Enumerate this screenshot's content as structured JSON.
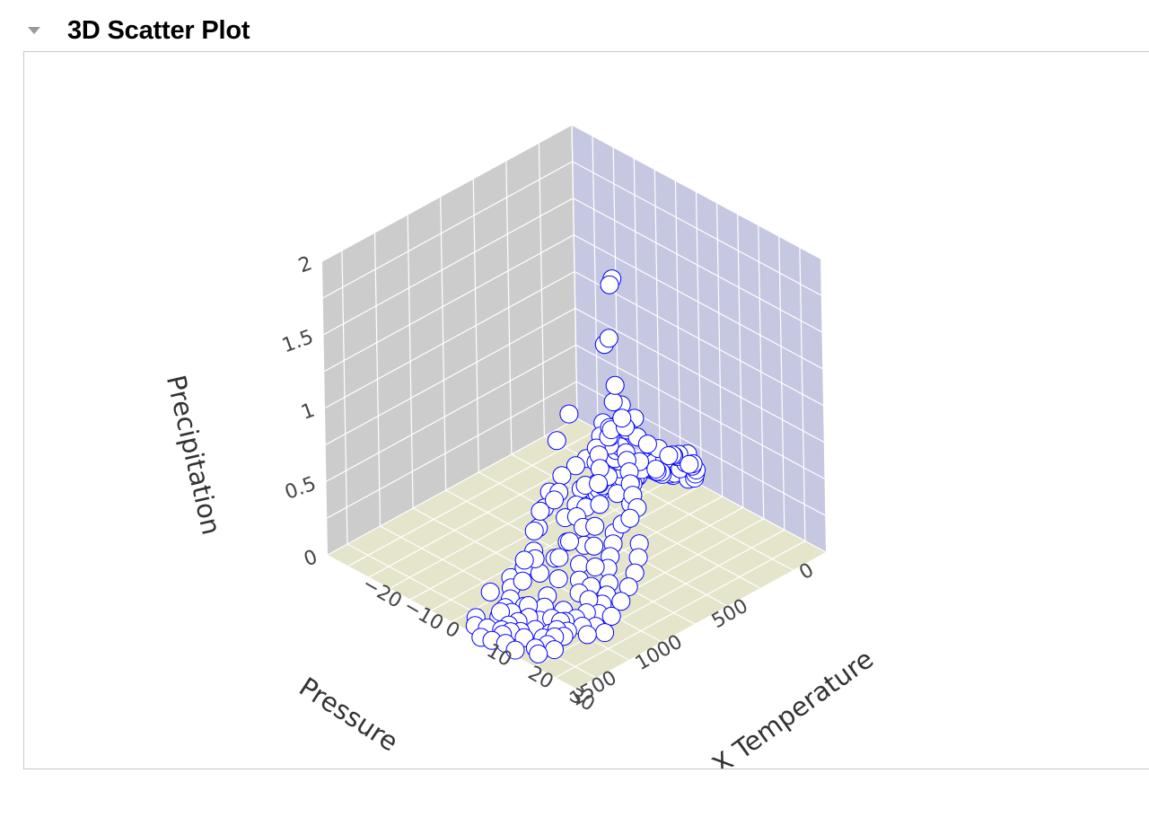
{
  "header": {
    "title": "3D Scatter Plot",
    "toggle_icon": "triangle-down-icon"
  },
  "chart_data": {
    "type": "scatter",
    "dimensions": 3,
    "marker": {
      "symbol": "open-circle",
      "color": "#0000ff",
      "fill": "#ffffff"
    },
    "colors": {
      "xz_wall": "#cccccc",
      "yz_wall": "#c6c7e1",
      "floor": "#e5e5cb",
      "grid": "#ffffff"
    },
    "axes": {
      "x": {
        "title": "Pressure",
        "ticks": [
          "0",
          "500",
          "1000",
          "1500"
        ],
        "range": [
          0,
          1900
        ]
      },
      "y": {
        "title": "X Temperature",
        "ticks": [
          "−20",
          "−10",
          "0",
          "10",
          "20",
          "30"
        ],
        "range": [
          -25,
          35
        ]
      },
      "z": {
        "title": "Precipitation",
        "ticks": [
          "0",
          "0.5",
          "1",
          "1.5",
          "2"
        ],
        "range": [
          0,
          2
        ]
      }
    },
    "points_note": "",
    "points": [
      [
        950,
        14.8,
        2.02
      ],
      [
        960,
        14.5,
        1.98
      ],
      [
        950,
        13.8,
        1.6
      ],
      [
        960,
        13.0,
        1.55
      ],
      [
        870,
        12.5,
        1.22
      ],
      [
        870,
        12.0,
        1.1
      ],
      [
        810,
        12.0,
        1.05
      ],
      [
        650,
        10.0,
        0.85
      ],
      [
        900,
        15.0,
        1.05
      ],
      [
        870,
        14.8,
        0.97
      ],
      [
        920,
        13.0,
        0.95
      ],
      [
        1020,
        6.0,
        1.0
      ],
      [
        1100,
        5.5,
        0.85
      ],
      [
        1200,
        9.0,
        0.6
      ],
      [
        1220,
        8.5,
        0.55
      ],
      [
        1360,
        8.0,
        0.4
      ],
      [
        1250,
        6.0,
        0.45
      ],
      [
        1500,
        10.0,
        0.3
      ],
      [
        1700,
        8.0,
        0.15
      ],
      [
        1750,
        12.0,
        0.1
      ],
      [
        1800,
        16.0,
        0.05
      ],
      [
        1600,
        14.0,
        0.1
      ],
      [
        1550,
        18.0,
        0.05
      ],
      [
        1400,
        15.0,
        0.2
      ],
      [
        1300,
        12.0,
        0.25
      ],
      [
        1450,
        11.0,
        0.3
      ],
      [
        1250,
        13.0,
        0.35
      ],
      [
        1100,
        10.0,
        0.4
      ],
      [
        1000,
        9.0,
        0.55
      ],
      [
        900,
        8.5,
        0.65
      ],
      [
        850,
        7.0,
        0.7
      ],
      [
        800,
        6.5,
        0.75
      ],
      [
        750,
        5.5,
        0.8
      ],
      [
        700,
        4.0,
        0.6
      ],
      [
        650,
        5.0,
        0.5
      ],
      [
        600,
        4.5,
        0.45
      ],
      [
        550,
        3.0,
        0.35
      ],
      [
        500,
        2.0,
        0.25
      ],
      [
        450,
        1.0,
        0.2
      ],
      [
        400,
        0.0,
        0.15
      ],
      [
        350,
        -1.0,
        0.1
      ],
      [
        300,
        -2.0,
        0.05
      ],
      [
        250,
        -3.0,
        0.05
      ],
      [
        200,
        -4.0,
        0.02
      ],
      [
        150,
        -5.0,
        0.01
      ],
      [
        100,
        -6.0,
        0.0
      ],
      [
        50,
        -7.0,
        0.0
      ],
      [
        120,
        -3.0,
        0.05
      ],
      [
        180,
        -1.0,
        0.1
      ],
      [
        220,
        1.0,
        0.15
      ],
      [
        280,
        3.0,
        0.2
      ],
      [
        320,
        5.0,
        0.25
      ],
      [
        380,
        7.0,
        0.3
      ],
      [
        420,
        9.0,
        0.35
      ],
      [
        480,
        11.0,
        0.4
      ],
      [
        520,
        12.0,
        0.45
      ],
      [
        580,
        13.0,
        0.5
      ],
      [
        620,
        14.0,
        0.55
      ],
      [
        680,
        12.0,
        0.6
      ],
      [
        720,
        10.0,
        0.65
      ],
      [
        780,
        8.0,
        0.7
      ],
      [
        820,
        9.5,
        0.8
      ],
      [
        880,
        11.0,
        0.85
      ],
      [
        940,
        10.5,
        0.75
      ],
      [
        980,
        12.0,
        0.7
      ],
      [
        1040,
        13.5,
        0.65
      ],
      [
        1080,
        15.0,
        0.55
      ],
      [
        1150,
        16.0,
        0.45
      ],
      [
        1190,
        17.0,
        0.35
      ],
      [
        1230,
        18.5,
        0.25
      ],
      [
        1280,
        19.0,
        0.15
      ],
      [
        1330,
        20.0,
        0.1
      ],
      [
        1380,
        21.0,
        0.05
      ],
      [
        1430,
        20.0,
        0.02
      ],
      [
        1480,
        19.0,
        0.01
      ],
      [
        1520,
        17.0,
        0.0
      ],
      [
        1580,
        16.0,
        0.02
      ],
      [
        1630,
        15.0,
        0.05
      ],
      [
        1680,
        14.0,
        0.03
      ],
      [
        1720,
        13.0,
        0.01
      ],
      [
        1660,
        17.5,
        0.02
      ],
      [
        1610,
        19.5,
        0.0
      ],
      [
        1540,
        21.5,
        0.01
      ],
      [
        1460,
        22.5,
        0.02
      ],
      [
        1390,
        23.5,
        0.0
      ],
      [
        1320,
        22.0,
        0.03
      ],
      [
        1260,
        21.0,
        0.05
      ],
      [
        1210,
        20.5,
        0.08
      ],
      [
        1160,
        19.5,
        0.12
      ],
      [
        1120,
        18.0,
        0.18
      ],
      [
        1070,
        17.0,
        0.22
      ],
      [
        1030,
        16.5,
        0.28
      ],
      [
        990,
        15.5,
        0.32
      ],
      [
        960,
        16.5,
        0.38
      ],
      [
        930,
        17.5,
        0.42
      ],
      [
        890,
        18.0,
        0.48
      ],
      [
        860,
        16.0,
        0.52
      ],
      [
        830,
        14.5,
        0.56
      ],
      [
        790,
        13.0,
        0.6
      ],
      [
        760,
        11.5,
        0.64
      ],
      [
        730,
        9.0,
        0.68
      ],
      [
        700,
        7.5,
        0.72
      ],
      [
        670,
        6.0,
        0.58
      ],
      [
        640,
        3.5,
        0.48
      ],
      [
        610,
        2.0,
        0.38
      ],
      [
        580,
        0.5,
        0.28
      ],
      [
        560,
        -1.0,
        0.18
      ],
      [
        540,
        -2.5,
        0.12
      ],
      [
        510,
        -4.0,
        0.06
      ],
      [
        490,
        -5.5,
        0.04
      ],
      [
        470,
        -6.5,
        0.02
      ],
      [
        440,
        -5.0,
        0.03
      ],
      [
        410,
        -3.5,
        0.08
      ],
      [
        390,
        -2.0,
        0.12
      ],
      [
        360,
        -0.5,
        0.16
      ],
      [
        340,
        1.5,
        0.22
      ],
      [
        310,
        3.5,
        0.28
      ],
      [
        290,
        5.5,
        0.32
      ],
      [
        260,
        7.5,
        0.36
      ],
      [
        240,
        9.5,
        0.4
      ],
      [
        210,
        8.0,
        0.3
      ],
      [
        190,
        6.0,
        0.22
      ],
      [
        170,
        4.0,
        0.15
      ],
      [
        140,
        2.0,
        0.1
      ],
      [
        110,
        0.0,
        0.06
      ],
      [
        80,
        -2.0,
        0.03
      ],
      [
        60,
        -4.0,
        0.01
      ],
      [
        90,
        1.0,
        0.05
      ],
      [
        130,
        6.0,
        0.12
      ],
      [
        160,
        8.5,
        0.18
      ],
      [
        230,
        11.0,
        0.28
      ],
      [
        270,
        12.5,
        0.35
      ],
      [
        330,
        13.5,
        0.42
      ],
      [
        370,
        15.0,
        0.48
      ],
      [
        430,
        16.0,
        0.52
      ],
      [
        460,
        14.5,
        0.58
      ],
      [
        530,
        15.5,
        0.62
      ],
      [
        570,
        16.5,
        0.66
      ],
      [
        630,
        17.5,
        0.7
      ],
      [
        660,
        16.0,
        0.74
      ],
      [
        710,
        15.0,
        0.78
      ],
      [
        740,
        13.5,
        0.82
      ],
      [
        770,
        12.0,
        0.86
      ],
      [
        800,
        11.0,
        0.9
      ],
      [
        840,
        10.0,
        0.88
      ],
      [
        780,
        7.5,
        0.48
      ],
      [
        720,
        5.5,
        0.42
      ],
      [
        690,
        3.0,
        0.35
      ],
      [
        660,
        1.0,
        0.28
      ],
      [
        600,
        -0.5,
        0.22
      ],
      [
        560,
        2.5,
        0.18
      ],
      [
        520,
        4.5,
        0.12
      ],
      [
        1350,
        5.0,
        0.08
      ],
      [
        1420,
        4.0,
        0.05
      ],
      [
        1480,
        6.0,
        0.04
      ],
      [
        1550,
        8.0,
        0.03
      ],
      [
        1620,
        9.0,
        0.02
      ],
      [
        1700,
        10.0,
        0.01
      ],
      [
        1780,
        7.0,
        0.0
      ],
      [
        1820,
        11.0,
        0.01
      ],
      [
        1600,
        22.5,
        0.02
      ],
      [
        1680,
        20.0,
        0.01
      ],
      [
        1760,
        18.0,
        0.02
      ],
      [
        1830,
        15.0,
        0.03
      ],
      [
        1860,
        19.0,
        0.0
      ],
      [
        1720,
        24.0,
        0.01
      ],
      [
        1500,
        25.0,
        0.02
      ],
      [
        1400,
        26.0,
        0.0
      ],
      [
        1300,
        24.5,
        0.04
      ],
      [
        1180,
        23.0,
        0.06
      ],
      [
        1090,
        22.0,
        0.1
      ],
      [
        1010,
        21.0,
        0.14
      ],
      [
        950,
        20.0,
        0.2
      ],
      [
        910,
        19.0,
        0.26
      ],
      [
        1060,
        11.0,
        0.46
      ],
      [
        1130,
        12.5,
        0.38
      ],
      [
        1170,
        14.0,
        0.3
      ],
      [
        1240,
        15.0,
        0.22
      ],
      [
        1290,
        16.5,
        0.16
      ],
      [
        1340,
        18.0,
        0.12
      ],
      [
        1440,
        13.5,
        0.08
      ],
      [
        1510,
        15.0,
        0.06
      ],
      [
        1570,
        12.0,
        0.05
      ],
      [
        1650,
        11.5,
        0.04
      ],
      [
        1740,
        16.5,
        0.03
      ],
      [
        1790,
        13.5,
        0.02
      ],
      [
        1850,
        9.0,
        0.01
      ],
      [
        1880,
        14.0,
        0.0
      ],
      [
        1470,
        8.5,
        0.12
      ],
      [
        1410,
        7.0,
        0.16
      ],
      [
        1320,
        6.5,
        0.22
      ],
      [
        1220,
        4.5,
        0.3
      ],
      [
        1140,
        3.5,
        0.38
      ],
      [
        1070,
        2.5,
        0.44
      ],
      [
        990,
        3.0,
        0.52
      ],
      [
        930,
        4.5,
        0.58
      ],
      [
        880,
        5.5,
        0.62
      ],
      [
        970,
        7.0,
        0.48
      ],
      [
        1040,
        8.0,
        0.42
      ],
      [
        1110,
        7.5,
        0.36
      ],
      [
        1190,
        10.5,
        0.28
      ],
      [
        1270,
        10.0,
        0.2
      ],
      [
        1370,
        9.5,
        0.14
      ],
      [
        1460,
        18.0,
        0.06
      ],
      [
        1530,
        19.5,
        0.04
      ],
      [
        1590,
        20.5,
        0.03
      ],
      [
        1640,
        21.5,
        0.02
      ],
      [
        1710,
        22.0,
        0.01
      ],
      [
        1770,
        21.0,
        0.0
      ],
      [
        1810,
        23.0,
        0.01
      ],
      [
        1870,
        17.0,
        0.02
      ],
      [
        1900,
        12.0,
        0.0
      ]
    ]
  }
}
